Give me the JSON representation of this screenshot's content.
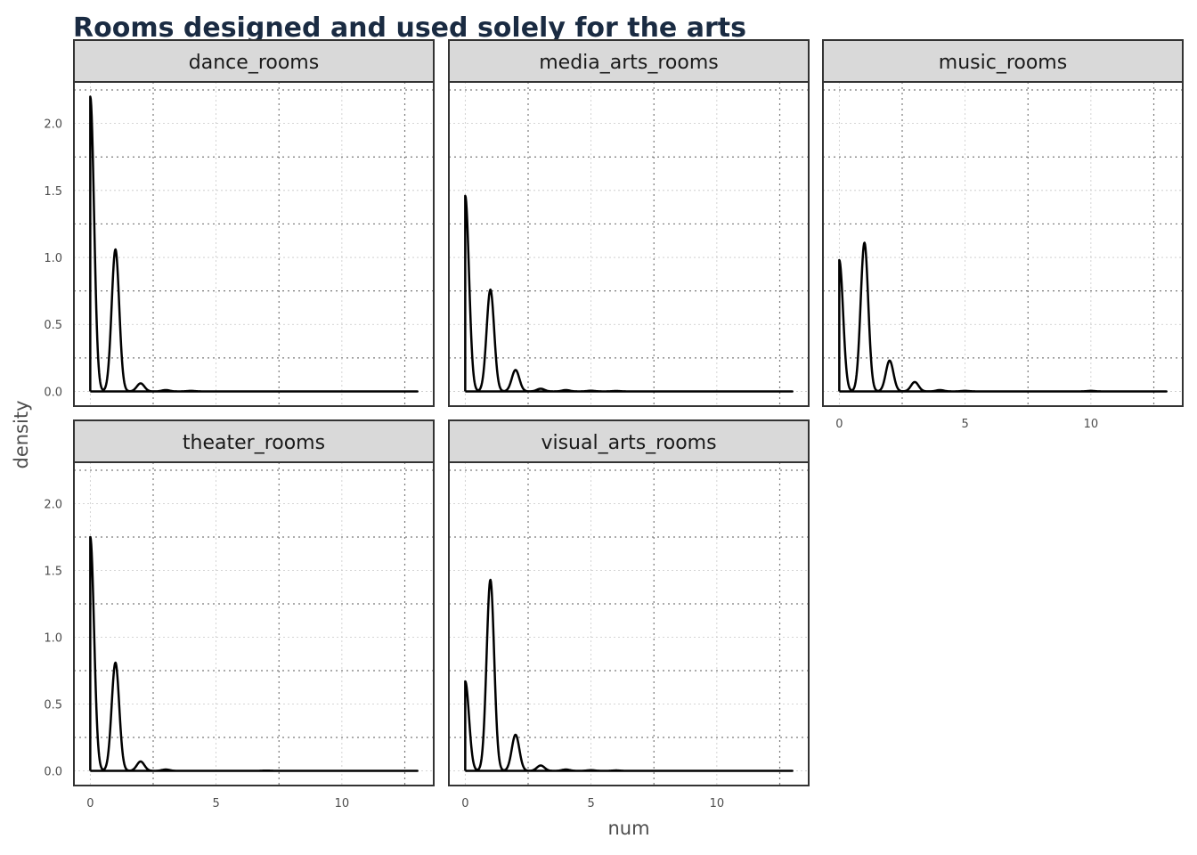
{
  "chart_data": {
    "type": "line",
    "kind": "density",
    "title": "Rooms designed and used solely for the arts",
    "xlabel": "num",
    "ylabel": "density",
    "xlim": [
      -0.65,
      13.65
    ],
    "ylim": [
      -0.11,
      2.31
    ],
    "x_ticks": [
      0,
      5,
      10
    ],
    "x_tick_labels": [
      "0",
      "5",
      "10"
    ],
    "y_ticks": [
      0,
      0.5,
      1,
      1.5,
      2
    ],
    "y_tick_labels": [
      "0.0",
      "0.5",
      "1.0",
      "1.5",
      "2.0"
    ],
    "y_minor_ticks": [
      0.25,
      0.75,
      1.25,
      1.75,
      2.25
    ],
    "x_minor_ticks": [
      2.5,
      7.5,
      12.5
    ],
    "x_range": [
      0,
      13
    ],
    "grid": true,
    "line_color": "#000000",
    "strip_fill": "#d9d9d9",
    "layout": "facet_wrap 3 columns",
    "facets": [
      {
        "name": "dance_rooms",
        "peaks": [
          [
            0,
            2.2
          ],
          [
            1,
            1.06
          ],
          [
            2,
            0.06
          ],
          [
            3,
            0.01
          ],
          [
            4,
            0.004
          ]
        ]
      },
      {
        "name": "media_arts_rooms",
        "peaks": [
          [
            0,
            1.46
          ],
          [
            1,
            0.76
          ],
          [
            2,
            0.16
          ],
          [
            3,
            0.02
          ],
          [
            4,
            0.01
          ],
          [
            5,
            0.005
          ],
          [
            6,
            0.003
          ]
        ]
      },
      {
        "name": "music_rooms",
        "peaks": [
          [
            0,
            0.98
          ],
          [
            1,
            1.11
          ],
          [
            2,
            0.23
          ],
          [
            3,
            0.07
          ],
          [
            4,
            0.01
          ],
          [
            5,
            0.004
          ],
          [
            10,
            0.004
          ]
        ]
      },
      {
        "name": "theater_rooms",
        "peaks": [
          [
            0,
            1.75
          ],
          [
            1,
            0.81
          ],
          [
            2,
            0.07
          ],
          [
            3,
            0.01
          ],
          [
            7,
            0.002
          ]
        ]
      },
      {
        "name": "visual_arts_rooms",
        "peaks": [
          [
            0,
            0.67
          ],
          [
            1,
            1.43
          ],
          [
            2,
            0.27
          ],
          [
            3,
            0.04
          ],
          [
            4,
            0.01
          ],
          [
            5,
            0.005
          ],
          [
            6,
            0.003
          ]
        ]
      }
    ]
  }
}
